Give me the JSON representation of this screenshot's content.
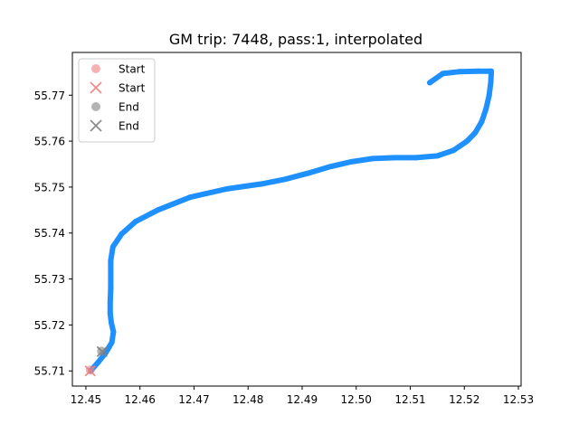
{
  "chart_data": {
    "type": "scatter",
    "title": "GM trip: 7448, pass:1, interpolated",
    "xlabel": "",
    "ylabel": "",
    "xlim": [
      12.4475,
      12.5305
    ],
    "ylim": [
      55.7067,
      55.7793
    ],
    "xticks": [
      12.45,
      12.46,
      12.47,
      12.48,
      12.49,
      12.5,
      12.51,
      12.52,
      12.53
    ],
    "xtick_labels": [
      "12.45",
      "12.46",
      "12.47",
      "12.48",
      "12.49",
      "12.50",
      "12.51",
      "12.52",
      "12.53"
    ],
    "yticks": [
      55.71,
      55.72,
      55.73,
      55.74,
      55.75,
      55.76,
      55.77
    ],
    "ytick_labels": [
      "55.71",
      "55.72",
      "55.73",
      "55.74",
      "55.75",
      "55.76",
      "55.77"
    ],
    "grid": false,
    "legend_placement": "upper-left",
    "series": [
      {
        "name": "",
        "style": "track",
        "color": "#1e90ff",
        "x": [
          12.4509,
          12.4522,
          12.4537,
          12.4548,
          12.4551,
          12.4547,
          12.4545,
          12.4545,
          12.4546,
          12.4546,
          12.455,
          12.4566,
          12.4592,
          12.4633,
          12.4693,
          12.476,
          12.4825,
          12.4868,
          12.491,
          12.495,
          12.499,
          12.503,
          12.507,
          12.511,
          12.515,
          12.518,
          12.5205,
          12.522,
          12.5232,
          12.524,
          12.5246,
          12.5249,
          12.525,
          12.5247,
          12.5225,
          12.519,
          12.516,
          12.5136
        ],
        "y": [
          55.71,
          55.7118,
          55.714,
          55.7162,
          55.7185,
          55.7205,
          55.7225,
          55.725,
          55.728,
          55.734,
          55.737,
          55.7398,
          55.7425,
          55.745,
          55.7478,
          55.7496,
          55.7507,
          55.7517,
          55.753,
          55.7544,
          55.7555,
          55.7562,
          55.7564,
          55.7564,
          55.7568,
          55.758,
          55.76,
          55.7618,
          55.7642,
          55.767,
          55.77,
          55.7728,
          55.7752,
          55.7752,
          55.7752,
          55.7751,
          55.7747,
          55.7727
        ]
      },
      {
        "name": "Start",
        "style": "circle",
        "color": "#f08080",
        "x": [
          12.4508
        ],
        "y": [
          55.7102
        ]
      },
      {
        "name": "Start",
        "style": "x",
        "color": "#f08080",
        "x": [
          12.4508
        ],
        "y": [
          55.71
        ]
      },
      {
        "name": "End",
        "style": "circle",
        "color": "#808080",
        "x": [
          12.4529
        ],
        "y": [
          55.7143
        ]
      },
      {
        "name": "End",
        "style": "x",
        "color": "#808080",
        "x": [
          12.453
        ],
        "y": [
          55.7142
        ]
      }
    ]
  }
}
